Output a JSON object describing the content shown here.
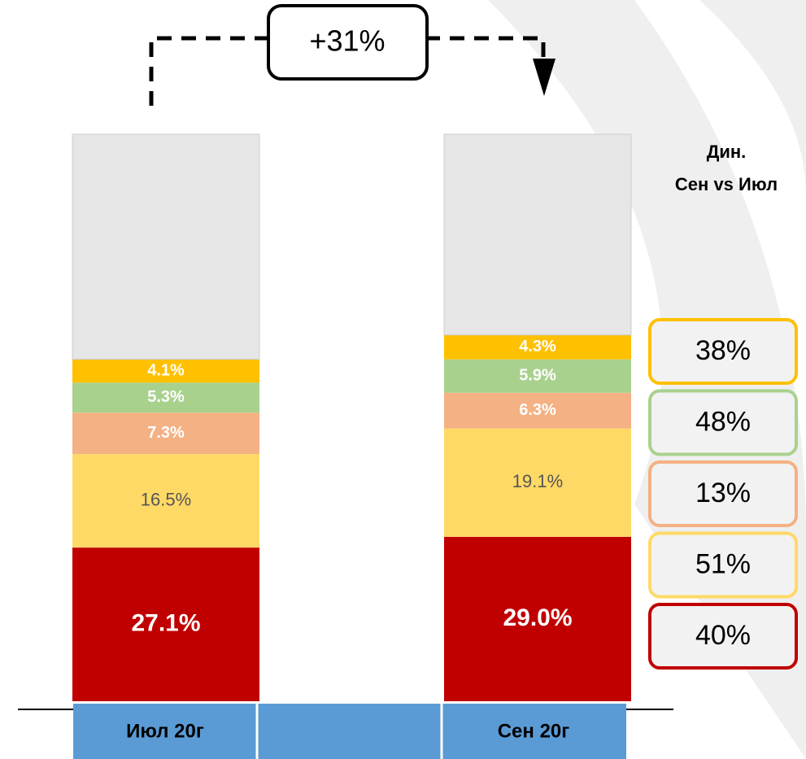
{
  "chart_data": {
    "type": "stacked_bar",
    "categories": [
      "Июл 20г",
      "Сен 20г"
    ],
    "ylim": [
      0,
      100
    ],
    "annotation": "+31%",
    "dynamics_title": [
      "Дин.",
      "Сен vs Июл"
    ],
    "series": [
      {
        "color": "#c00000",
        "values": [
          27.1,
          29.0
        ],
        "value_labels": [
          "27.1%",
          "29.0%"
        ],
        "dynamic": 40,
        "dynamic_label": "40%"
      },
      {
        "color": "#ffd966",
        "values": [
          16.5,
          19.1
        ],
        "value_labels": [
          "16.5%",
          "19.1%"
        ],
        "dynamic": 51,
        "dynamic_label": "51%"
      },
      {
        "color": "#f4b183",
        "values": [
          7.3,
          6.3
        ],
        "value_labels": [
          "7.3%",
          "6.3%"
        ],
        "dynamic": 13,
        "dynamic_label": "13%"
      },
      {
        "color": "#a9d18e",
        "values": [
          5.3,
          5.9
        ],
        "value_labels": [
          "5.3%",
          "5.9%"
        ],
        "dynamic": 48,
        "dynamic_label": "48%"
      },
      {
        "color": "#ffc000",
        "values": [
          4.1,
          4.3
        ],
        "value_labels": [
          "4.1%",
          "4.3%"
        ],
        "dynamic": 38,
        "dynamic_label": "38%"
      },
      {
        "color": "#e7e6e6",
        "values": [
          39.7,
          35.4
        ]
      }
    ]
  }
}
